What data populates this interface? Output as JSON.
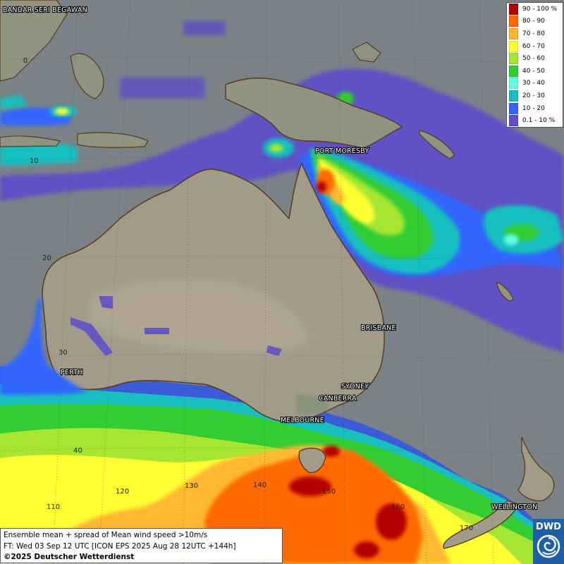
{
  "legend": {
    "items": [
      {
        "label": "90 - 100 %",
        "color": "#b30000"
      },
      {
        "label": "80 - 90",
        "color": "#ff6a00"
      },
      {
        "label": "70 - 80",
        "color": "#ffb833"
      },
      {
        "label": "60 - 70",
        "color": "#ffff33"
      },
      {
        "label": "50 - 60",
        "color": "#a6e633"
      },
      {
        "label": "40 - 50",
        "color": "#33cc33"
      },
      {
        "label": "30 - 40",
        "color": "#66ffe6"
      },
      {
        "label": "20 - 30",
        "color": "#19bfbf"
      },
      {
        "label": "10 - 20",
        "color": "#3366ff"
      },
      {
        "label": "0.1 - 10 %",
        "color": "#5f50c8"
      }
    ]
  },
  "cities": {
    "bandar": "BANDAR SERI BEGAWAN",
    "port_moresby": "PORT MORESBY",
    "perth": "PERTH",
    "brisbane": "BRISBANE",
    "sydney": "SYDNEY",
    "canberra": "CANBERRA",
    "melbourne": "MELBOURNE",
    "wellington": "WELLINGTON"
  },
  "grid_labels": {
    "lat_0": "0",
    "lat_10": "10",
    "lat_20": "20",
    "lat_30": "30",
    "lat_40": "40",
    "lon_110": "110",
    "lon_120": "120",
    "lon_130": "130",
    "lon_140": "140",
    "lon_150": "150",
    "lon_160": "160",
    "lon_170": "170"
  },
  "info": {
    "line1": "Ensemble mean + spread of Mean wind speed >10m/s",
    "line2": "FT: Wed 03 Sep 12 UTC [ICON EPS 2025 Aug 28 12UTC +144h]",
    "line3": "©2025 Deutscher Wetterdienst"
  },
  "logo": {
    "text": "DWD"
  }
}
